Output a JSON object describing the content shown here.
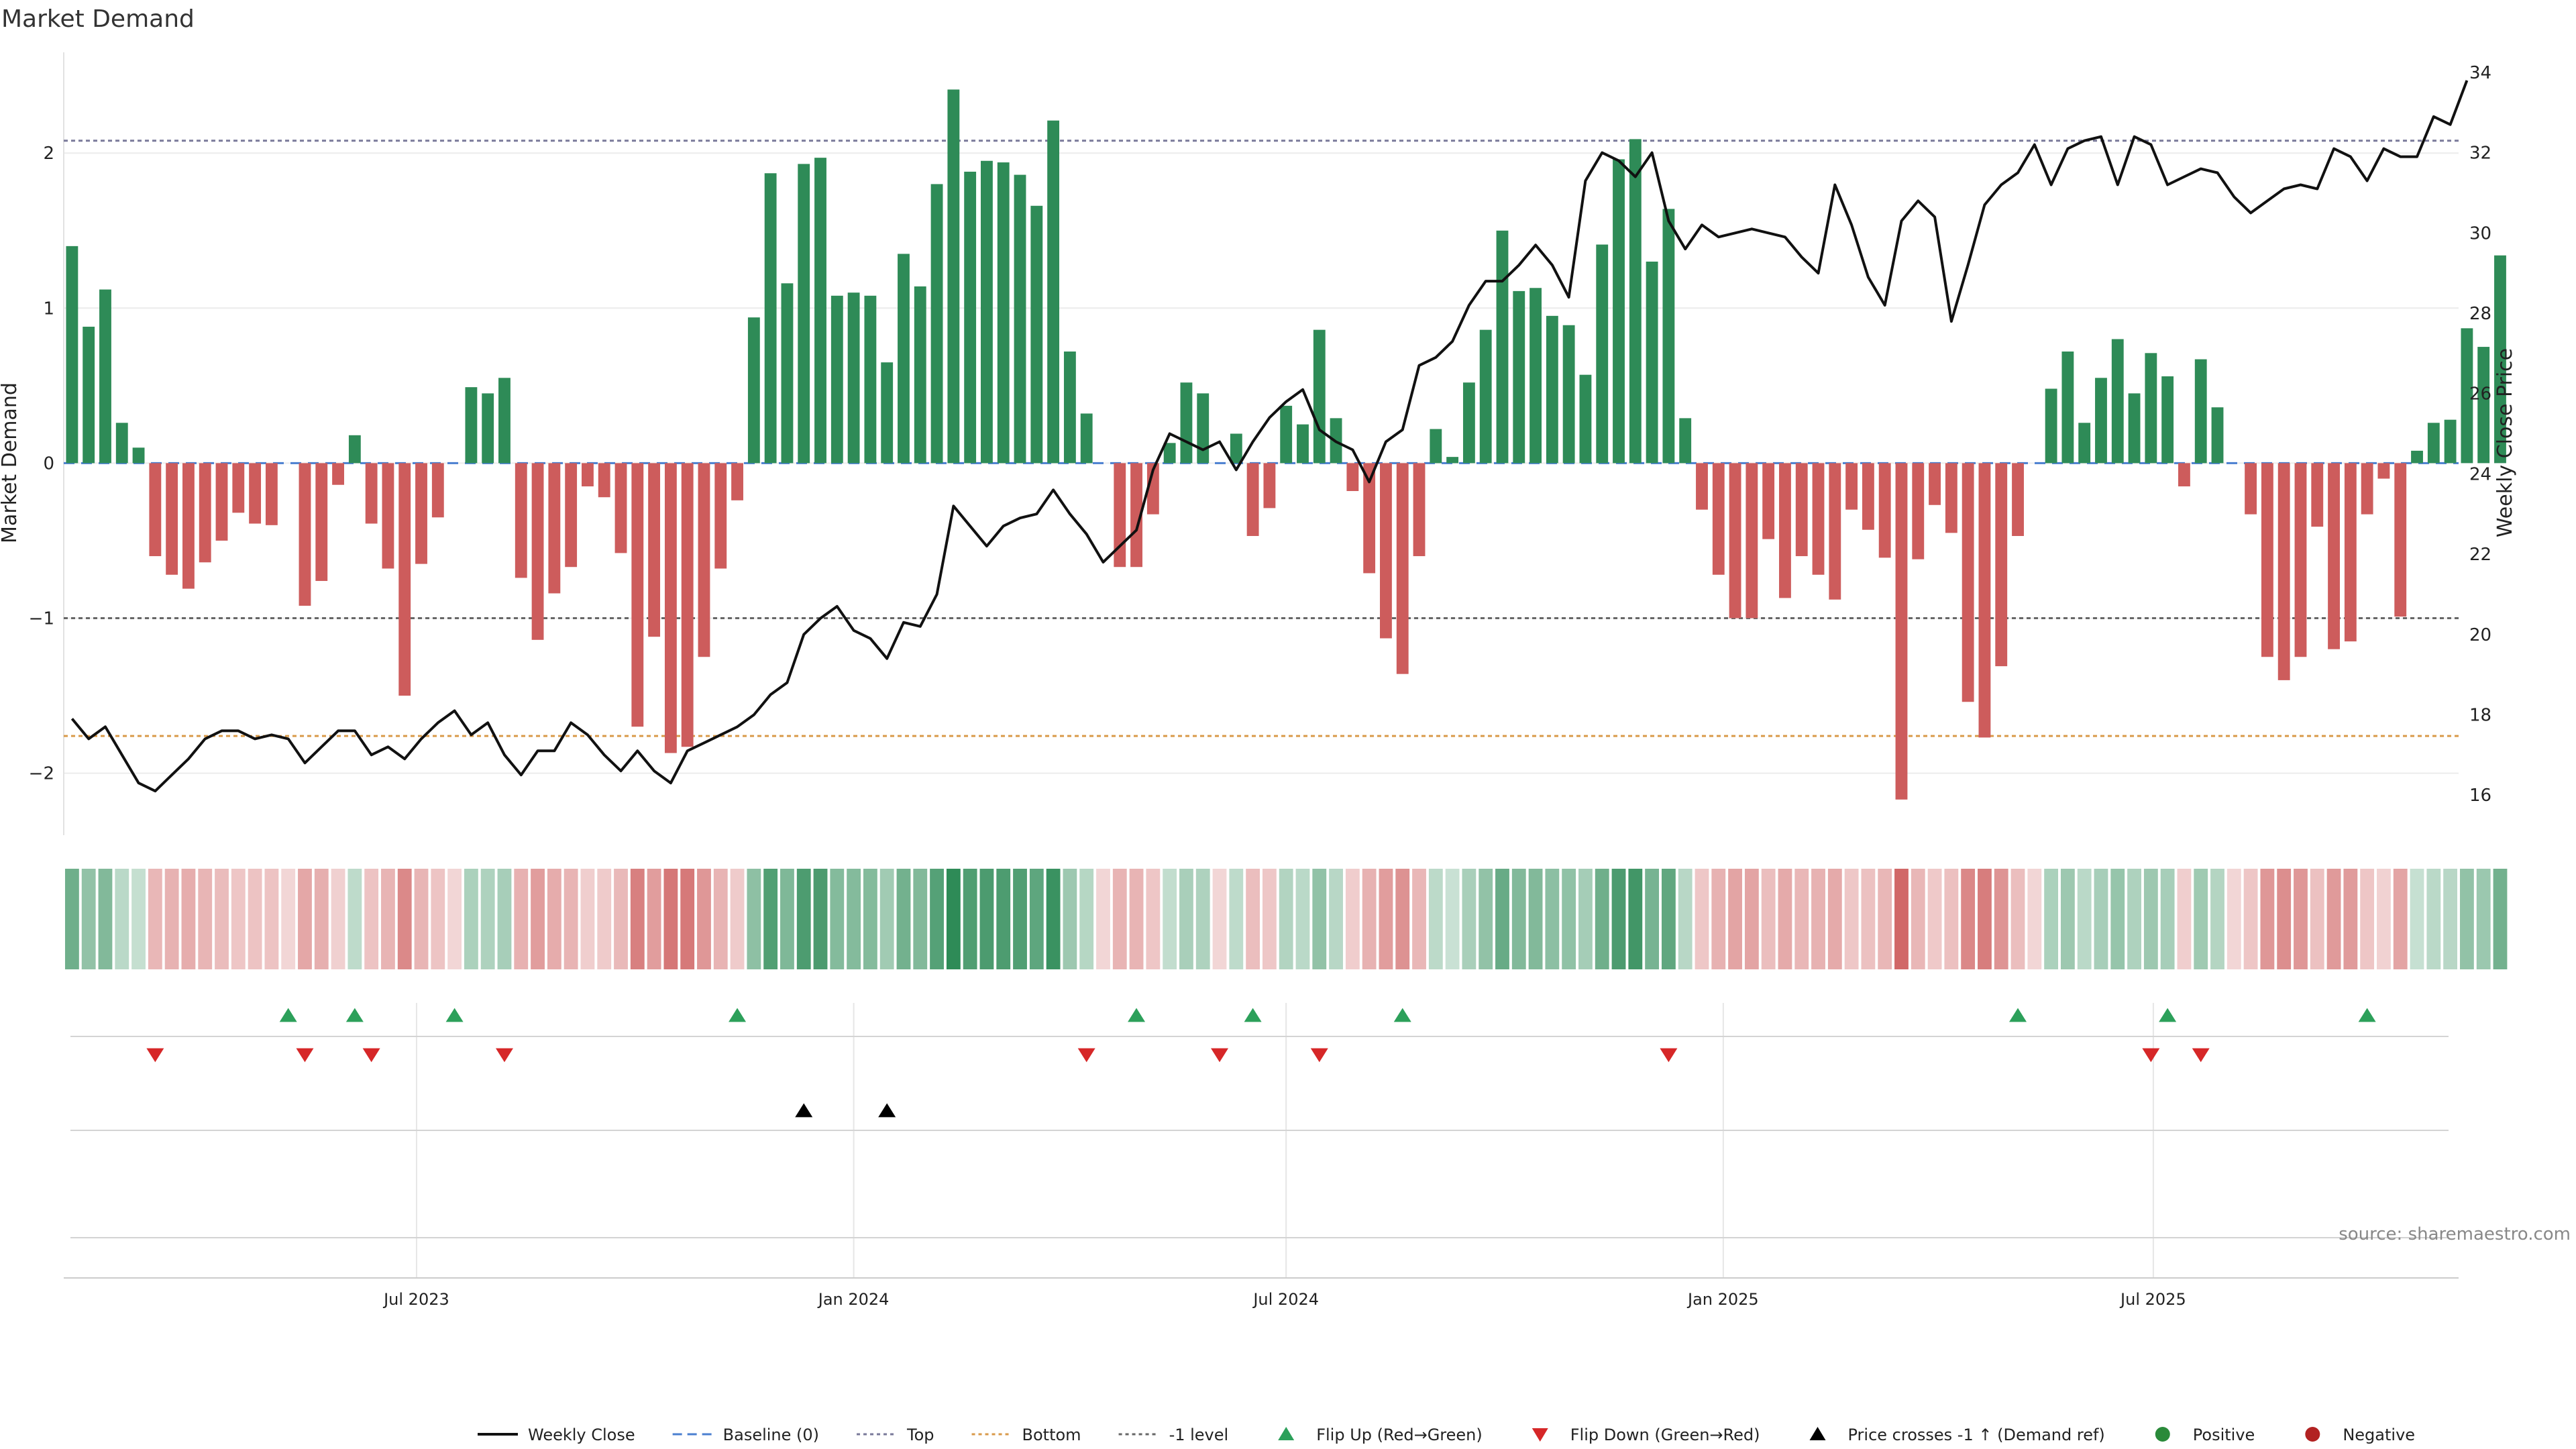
{
  "colors": {
    "pos_bar": "#2e8b57",
    "neg_bar": "#cd5c5c",
    "line": "#111111",
    "top_line": "#7a7a9a",
    "bottom_line": "#d99a4a",
    "minus_one_line": "#666666",
    "baseline": "#4a7fd0",
    "flip_up": "#2ca05a",
    "flip_down": "#d62728",
    "cross": "#000000",
    "positive_dot": "#2a8a3a",
    "negative_dot": "#b22222"
  },
  "chart_data": {
    "type": "bar+line",
    "title": "Market Demand",
    "ylabel": "Market Demand",
    "ylabel_right": "Weekly Close Price",
    "ylim": [
      -2.4,
      2.65
    ],
    "ylim_right": [
      15.0,
      34.5
    ],
    "yticks": [
      -2,
      -1,
      0,
      1,
      2
    ],
    "yticks_right": [
      16,
      18,
      20,
      22,
      24,
      26,
      28,
      30,
      32,
      34
    ],
    "levels": {
      "top": 2.08,
      "bottom": -1.76,
      "minus_one": -1.0,
      "baseline": 0
    },
    "start_date": "2023-02-06",
    "n_weeks": 144,
    "x_ticks": [
      {
        "label": "Jul 2023",
        "date": "2023-07-01"
      },
      {
        "label": "Jan 2024",
        "date": "2024-01-01"
      },
      {
        "label": "Jul 2024",
        "date": "2024-07-01"
      },
      {
        "label": "Jan 2025",
        "date": "2025-01-01"
      },
      {
        "label": "Jul 2025",
        "date": "2025-07-01"
      }
    ],
    "demand": [
      1.4,
      0.88,
      1.12,
      0.26,
      0.1,
      -0.6,
      -0.72,
      -0.81,
      -0.64,
      -0.5,
      -0.32,
      -0.39,
      -0.4,
      0,
      -0.92,
      -0.76,
      -0.14,
      0.18,
      -0.39,
      -0.68,
      -1.5,
      -0.65,
      -0.35,
      0,
      0.49,
      0.45,
      0.55,
      -0.74,
      -1.14,
      -0.84,
      -0.67,
      -0.15,
      -0.22,
      -0.58,
      -1.7,
      -1.12,
      -1.87,
      -1.83,
      -1.25,
      -0.68,
      -0.24,
      0.94,
      1.87,
      1.16,
      1.93,
      1.97,
      1.08,
      1.1,
      1.08,
      0.65,
      1.35,
      1.14,
      1.8,
      2.41,
      1.88,
      1.95,
      1.94,
      1.86,
      1.66,
      2.21,
      0.72,
      0.32,
      0,
      -0.67,
      -0.67,
      -0.33,
      0.13,
      0.52,
      0.45,
      0,
      0.19,
      -0.47,
      -0.29,
      0.37,
      0.25,
      0.86,
      0.29,
      -0.18,
      -0.71,
      -1.13,
      -1.36,
      -0.6,
      0.22,
      0.04,
      0.52,
      0.86,
      1.5,
      1.11,
      1.13,
      0.95,
      0.89,
      0.57,
      1.41,
      1.96,
      2.09,
      1.3,
      1.64,
      0.29,
      -0.3,
      -0.72,
      -1.0,
      -1.0,
      -0.49,
      -0.87,
      -0.6,
      -0.72,
      -0.88,
      -0.3,
      -0.43,
      -0.61,
      -2.17,
      -0.62,
      -0.27,
      -0.45,
      -1.54,
      -1.77,
      -1.31,
      -0.47,
      0,
      0.48,
      0.72,
      0.26,
      0.55,
      0.8,
      0.45,
      0.71,
      0.56,
      -0.15,
      0.67,
      0.36,
      0,
      -0.33,
      -1.25,
      -1.4,
      -1.25,
      -0.41,
      -1.2,
      -1.15,
      -0.33,
      -0.1,
      -0.99,
      0.08,
      0.26,
      0.28,
      0.87,
      0.75,
      1.34
    ],
    "close": [
      17.9,
      17.4,
      17.7,
      17.0,
      16.3,
      16.1,
      16.5,
      16.9,
      17.4,
      17.6,
      17.6,
      17.4,
      17.5,
      17.4,
      16.8,
      17.2,
      17.6,
      17.6,
      17.0,
      17.2,
      16.9,
      17.4,
      17.8,
      18.1,
      17.5,
      17.8,
      17.0,
      16.5,
      17.1,
      17.1,
      17.8,
      17.5,
      17.0,
      16.6,
      17.1,
      16.6,
      16.3,
      17.1,
      17.3,
      17.5,
      17.7,
      18.0,
      18.5,
      18.8,
      20.0,
      20.4,
      20.7,
      20.1,
      19.9,
      19.4,
      20.3,
      20.2,
      21.0,
      23.2,
      22.7,
      22.2,
      22.7,
      22.9,
      23.0,
      23.6,
      23.0,
      22.5,
      21.8,
      22.2,
      22.6,
      24.1,
      25.0,
      24.8,
      24.6,
      24.8,
      24.1,
      24.8,
      25.4,
      25.8,
      26.1,
      25.1,
      24.8,
      24.6,
      23.8,
      24.8,
      25.1,
      26.7,
      26.9,
      27.3,
      28.2,
      28.8,
      28.8,
      29.2,
      29.7,
      29.2,
      28.4,
      31.3,
      32.0,
      31.8,
      31.4,
      32.0,
      30.3,
      29.6,
      30.2,
      29.9,
      30.0,
      30.1,
      30.0,
      29.9,
      29.4,
      29.0,
      31.2,
      30.2,
      28.9,
      28.2,
      30.3,
      30.8,
      30.4,
      27.8,
      29.2,
      30.7,
      31.2,
      31.5,
      32.2,
      31.2,
      32.1,
      32.3,
      32.4,
      31.2,
      32.4,
      32.2,
      31.2,
      31.4,
      31.6,
      31.5,
      30.9,
      30.5,
      30.8,
      31.1,
      31.2,
      31.1,
      32.1,
      31.9,
      31.3,
      32.1,
      31.9,
      31.9,
      32.9,
      32.7,
      33.8
    ],
    "flip_up_weeks": [
      13,
      17,
      23,
      40,
      64,
      71,
      80,
      117,
      126,
      138
    ],
    "flip_down_weeks": [
      5,
      14,
      18,
      26,
      61,
      69,
      75,
      96,
      125,
      128
    ],
    "price_cross_weeks": [
      44,
      49
    ]
  },
  "legend": [
    {
      "label": "Weekly Close",
      "kind": "line-solid",
      "color_key": "line"
    },
    {
      "label": "Baseline (0)",
      "kind": "line-dash",
      "color_key": "baseline"
    },
    {
      "label": "Top",
      "kind": "line-dot",
      "color_key": "top_line"
    },
    {
      "label": "Bottom",
      "kind": "line-dot",
      "color_key": "bottom_line"
    },
    {
      "label": "-1 level",
      "kind": "line-dot",
      "color_key": "minus_one_line"
    },
    {
      "label": "Flip Up (Red→Green)",
      "kind": "tri-up",
      "color_key": "flip_up"
    },
    {
      "label": "Flip Down (Green→Red)",
      "kind": "tri-down",
      "color_key": "flip_down"
    },
    {
      "label": "Price crosses -1 ↑ (Demand ref)",
      "kind": "tri-up",
      "color_key": "cross"
    },
    {
      "label": "Positive",
      "kind": "dot",
      "color_key": "positive_dot"
    },
    {
      "label": "Negative",
      "kind": "dot",
      "color_key": "negative_dot"
    }
  ],
  "source": "source: sharemaestro.com"
}
